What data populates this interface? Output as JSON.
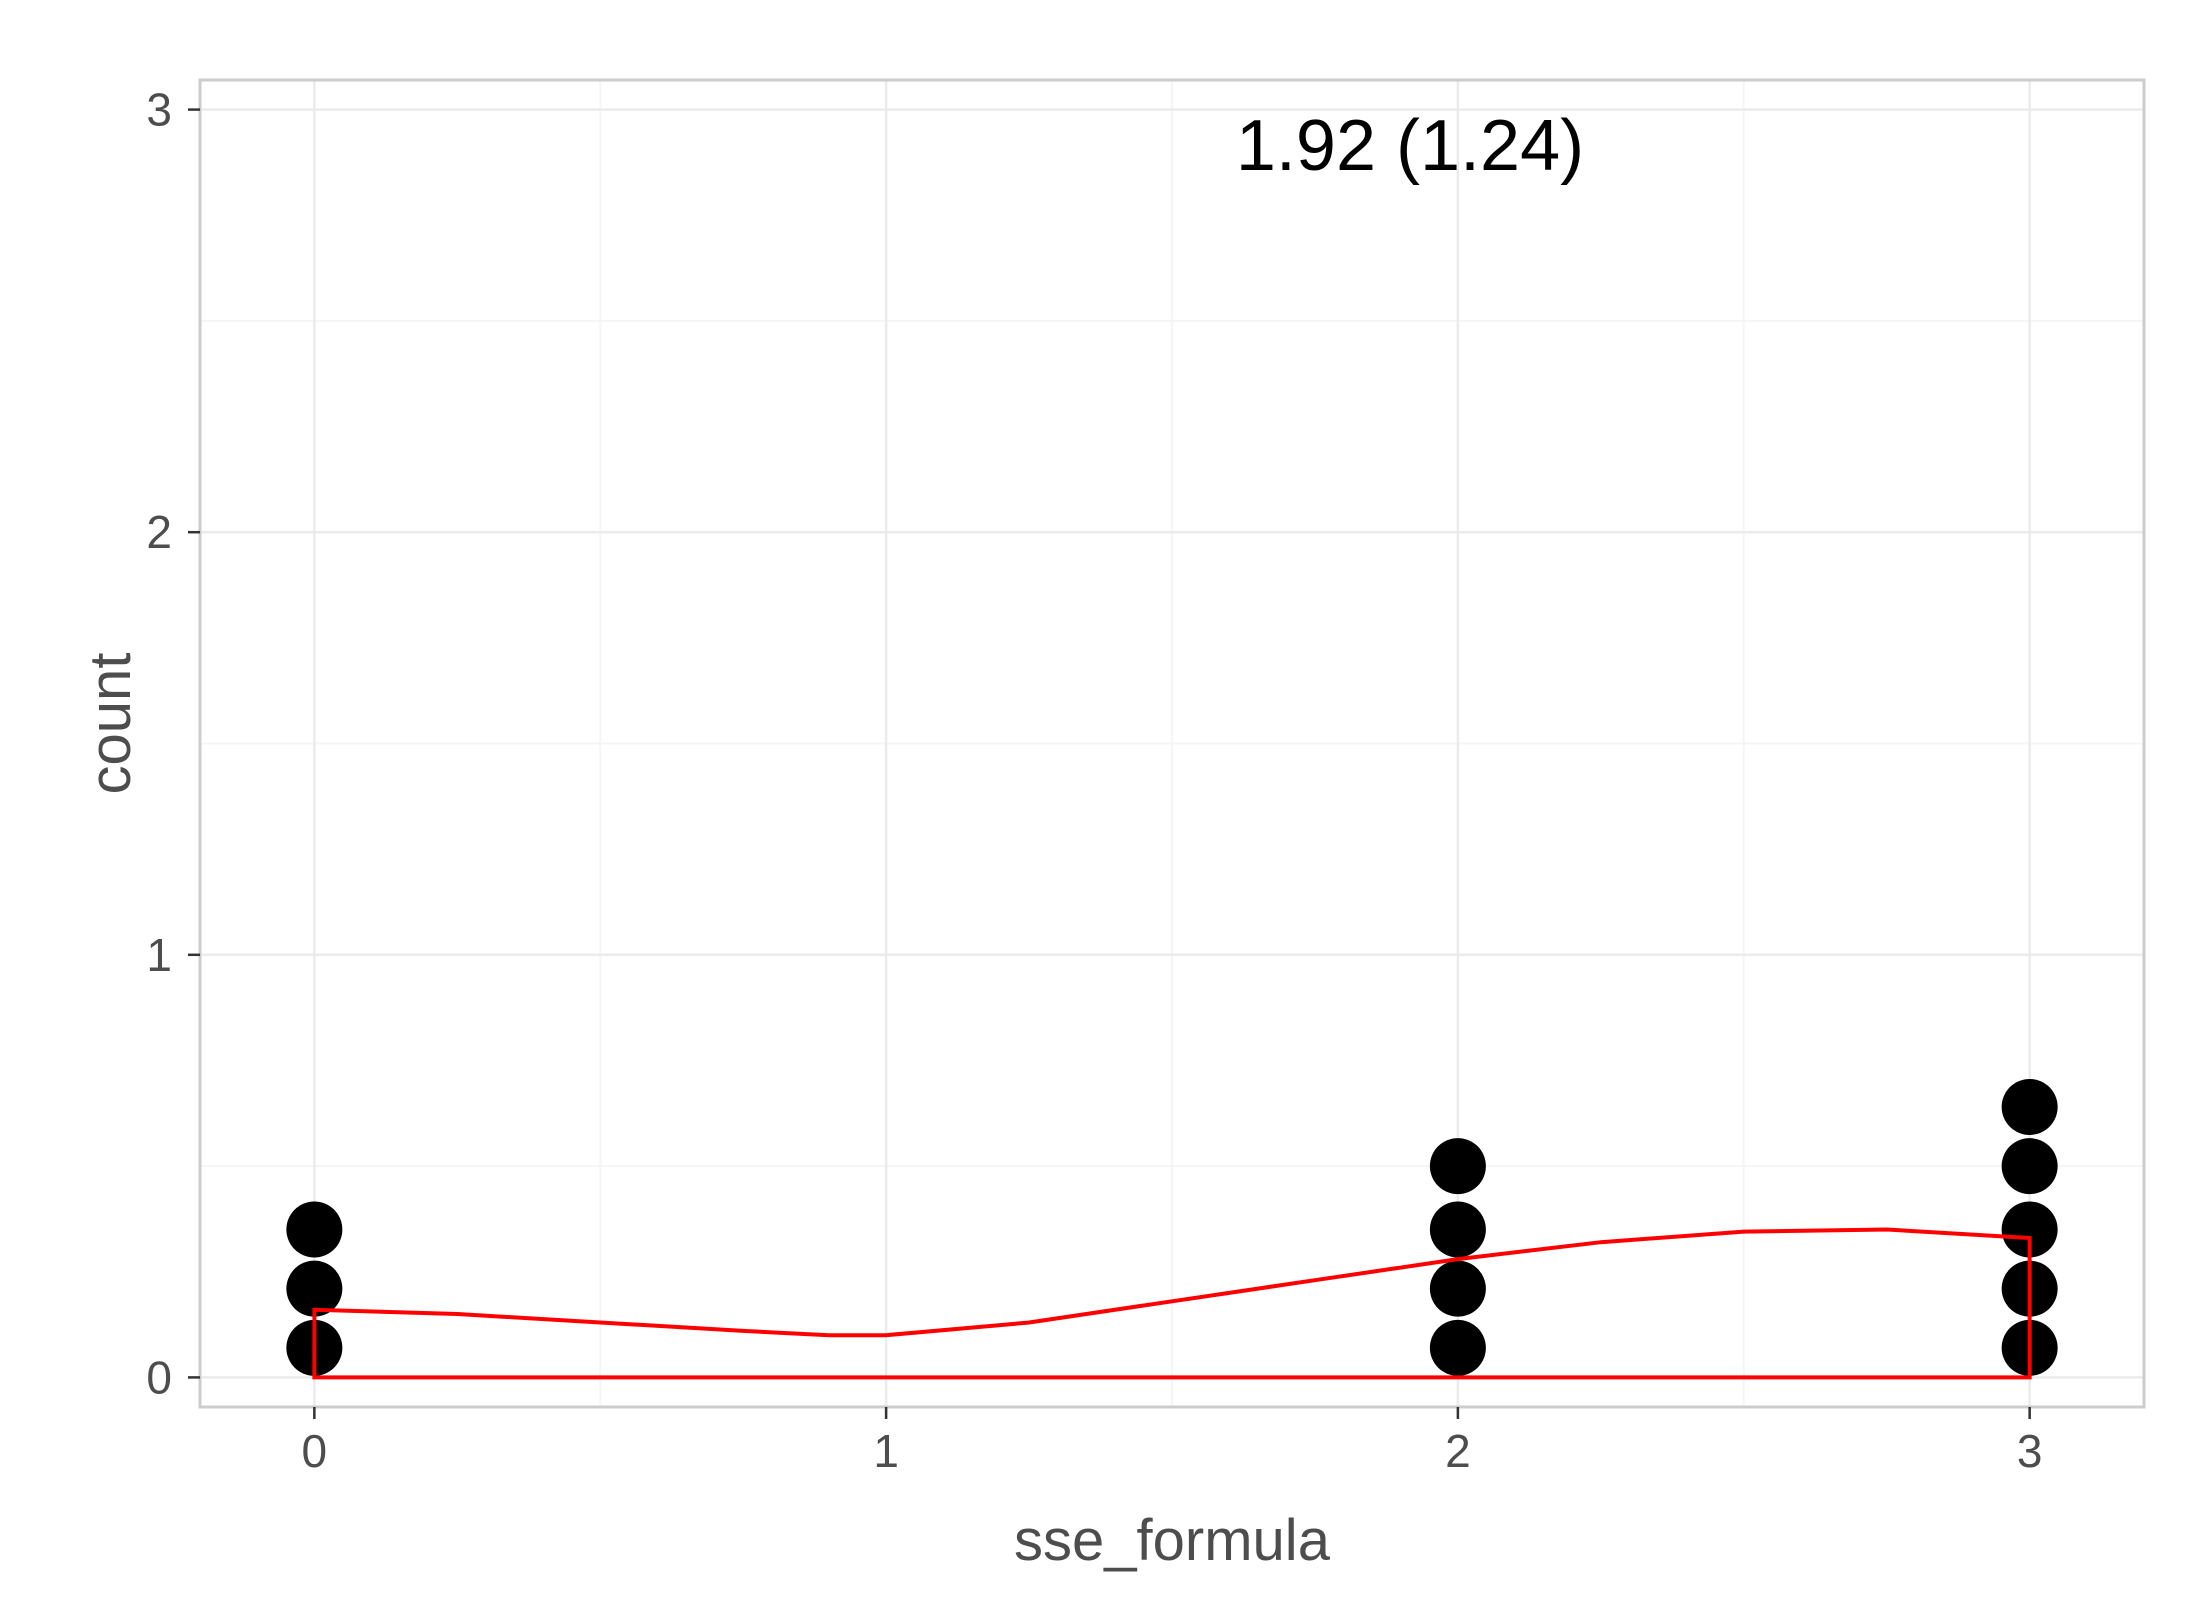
{
  "chart_data": {
    "type": "dotplot",
    "xlabel": "sse_formula",
    "ylabel": "count",
    "annotation": "1.92 (1.24)",
    "xlim": [
      -0.2,
      3.2
    ],
    "ylim": [
      -0.07,
      3.07
    ],
    "x_ticks": [
      0,
      1,
      2,
      3
    ],
    "y_ticks": [
      0,
      1,
      2,
      3
    ],
    "grid": true,
    "dot_stacks": [
      {
        "x": 0,
        "count": 3
      },
      {
        "x": 2,
        "count": 4
      },
      {
        "x": 3,
        "count": 5
      }
    ],
    "dot_centers_y": [
      0.07,
      0.21,
      0.35,
      0.5,
      0.64
    ],
    "density_curve": {
      "x": [
        0,
        0.25,
        0.5,
        0.75,
        0.9,
        1.0,
        1.25,
        1.5,
        1.75,
        2.0,
        2.25,
        2.5,
        2.75,
        3.0
      ],
      "y": [
        0.16,
        0.15,
        0.13,
        0.11,
        0.1,
        0.1,
        0.13,
        0.18,
        0.23,
        0.28,
        0.32,
        0.345,
        0.35,
        0.33
      ]
    },
    "colors": {
      "dots": "#000000",
      "density": "#ff0000",
      "grid_major": "#ebebeb",
      "grid_minor": "#f5f5f5",
      "panel_border": "#cccccc"
    }
  }
}
